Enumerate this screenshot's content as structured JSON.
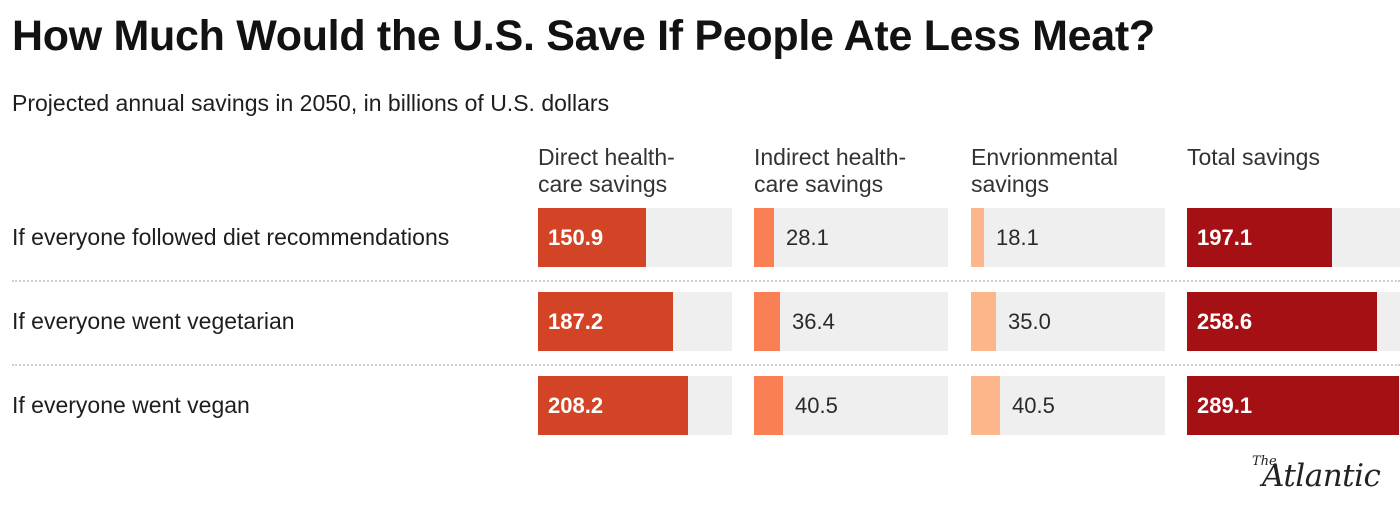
{
  "chart_data": {
    "type": "table",
    "title": "How Much Would the U.S. Save If People Ate Less Meat?",
    "subtitle": "Projected annual savings in 2050, in billions of U.S. dollars",
    "columns": [
      {
        "label": "Direct health-\ncare savings",
        "color": "#d34426"
      },
      {
        "label": "Indirect health-\ncare savings",
        "color": "#fb7f55"
      },
      {
        "label": "Envrionmental\nsavings",
        "color": "#fdb68a"
      },
      {
        "label": "Total savings",
        "color": "#a51014"
      }
    ],
    "rows": [
      {
        "label": "If everyone followed diet recommendations",
        "values": [
          150.9,
          28.1,
          18.1,
          197.1
        ],
        "display": [
          "150.9",
          "28.1",
          "18.1",
          "197.1"
        ]
      },
      {
        "label": "If everyone went vegetarian",
        "values": [
          187.2,
          36.4,
          35.0,
          258.6
        ],
        "display": [
          "187.2",
          "36.4",
          "35.0",
          "258.6"
        ]
      },
      {
        "label": "If everyone went vegan",
        "values": [
          208.2,
          40.5,
          40.5,
          289.1
        ],
        "display": [
          "208.2",
          "40.5",
          "40.5",
          "289.1"
        ]
      }
    ],
    "column_max": [
      270,
      270,
      270,
      290
    ]
  },
  "logo": {
    "the": "The",
    "name": "Atlantic"
  }
}
